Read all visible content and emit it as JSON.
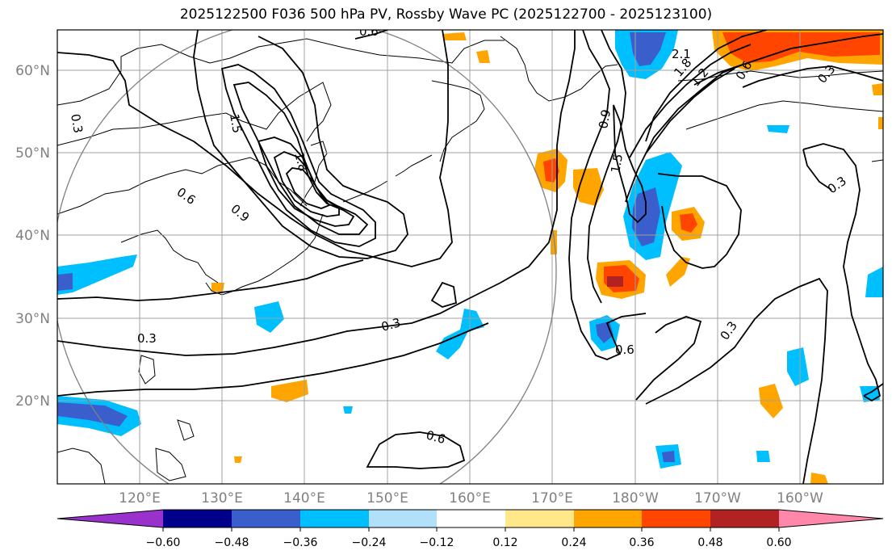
{
  "title": "2025122500 F036 500 hPa PV, Rossby Wave PC (2025122700 - 2025123100)",
  "lat_labels": [
    "60°N",
    "50°N",
    "40°N",
    "30°N",
    "20°N"
  ],
  "lon_labels": [
    "120°E",
    "130°E",
    "140°E",
    "150°E",
    "160°E",
    "170°E",
    "180°W",
    "170°W",
    "160°W"
  ],
  "contour_labels": [
    "0.6",
    "1.5",
    "1.8",
    "0.6",
    "0.9",
    "0.3",
    "0.3",
    "0.3",
    "0.9",
    "1.5",
    "2.1",
    "1.8",
    "1.2",
    "0.6",
    "0.3",
    "0.3",
    "0.6",
    "0.3"
  ],
  "colorbar": {
    "colors": [
      "#9932cc",
      "#00008b",
      "#3a5fcd",
      "#00bfff",
      "#b0e0fa",
      "#ffffff",
      "#ffe88a",
      "#ffa500",
      "#ff4500",
      "#b22222",
      "#ff88aa"
    ],
    "ticks": [
      "−0.60",
      "−0.48",
      "−0.36",
      "−0.24",
      "−0.12",
      "0.12",
      "0.24",
      "0.36",
      "0.48",
      "0.60"
    ]
  }
}
